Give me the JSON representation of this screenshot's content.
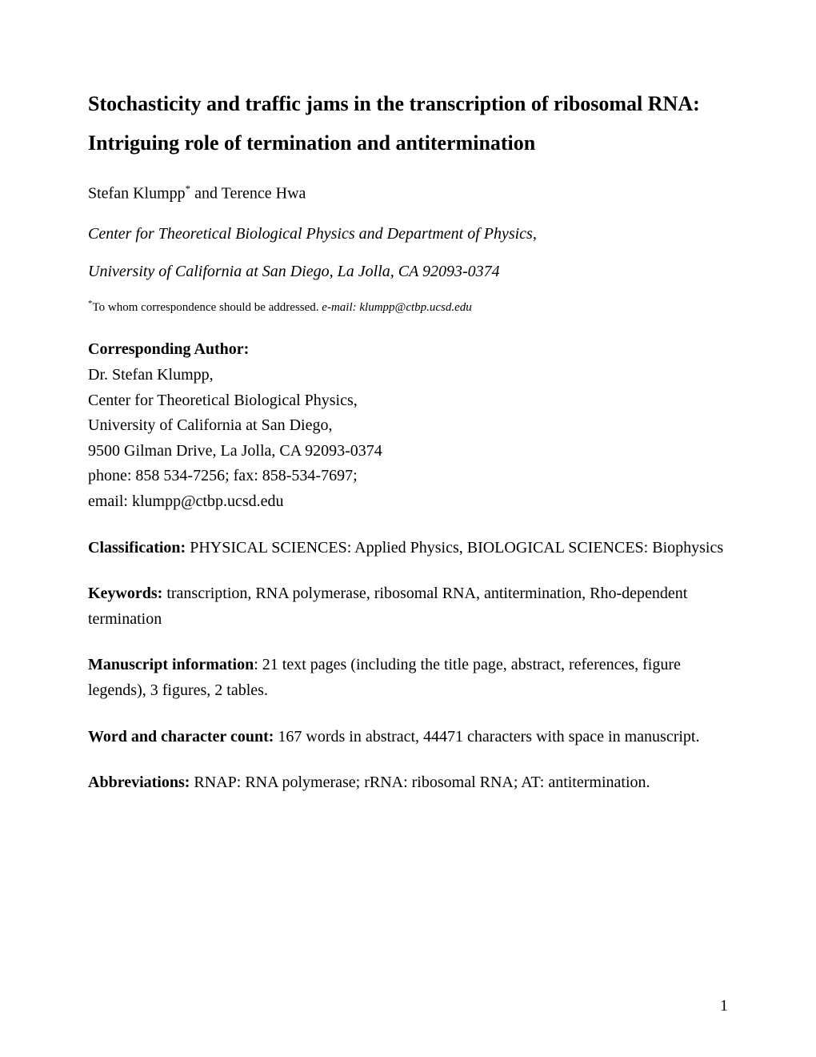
{
  "title": "Stochasticity and traffic jams in the transcription of ribosomal RNA: Intriguing role of termination and antitermination",
  "authors": {
    "name1": "Stefan Klumpp",
    "sup": "*",
    "conjunction": " and ",
    "name2": "Terence Hwa"
  },
  "affiliation": "Center for Theoretical Biological Physics and Department of Physics,",
  "addressLine": "University of California at San Diego, La Jolla, CA  92093-0374",
  "correspondence": {
    "sup": "*",
    "prefix": "To whom correspondence should be addressed. ",
    "emailLabel": "e-mail: klumpp@ctbp.ucsd.edu"
  },
  "corrAuthor": {
    "label": "Corresponding Author:",
    "name": "Dr. Stefan Klumpp,",
    "inst": "Center for Theoretical Biological Physics,",
    "univ": "University of California at San Diego,",
    "addr": "9500 Gilman Drive, La Jolla, CA 92093-0374",
    "phone": "phone: 858 534-7256; fax: 858-534-7697;",
    "email": "email: klumpp@ctbp.ucsd.edu"
  },
  "classification": {
    "label": "Classification:",
    "text": " PHYSICAL SCIENCES: Applied Physics, BIOLOGICAL SCIENCES: Biophysics"
  },
  "keywords": {
    "label": "Keywords:",
    "text": " transcription, RNA polymerase, ribosomal RNA, antitermination, Rho-dependent termination"
  },
  "manuscriptInfo": {
    "label": "Manuscript information",
    "text": ": 21 text pages (including the title page, abstract, references, figure legends), 3 figures, 2 tables."
  },
  "wordCount": {
    "label": "Word and character count:",
    "text": " 167 words in abstract, 44471 characters with space in manuscript."
  },
  "abbreviations": {
    "label": "Abbreviations:",
    "text": "  RNAP: RNA polymerase; rRNA: ribosomal RNA; AT: antitermination."
  },
  "pageNumber": "1"
}
